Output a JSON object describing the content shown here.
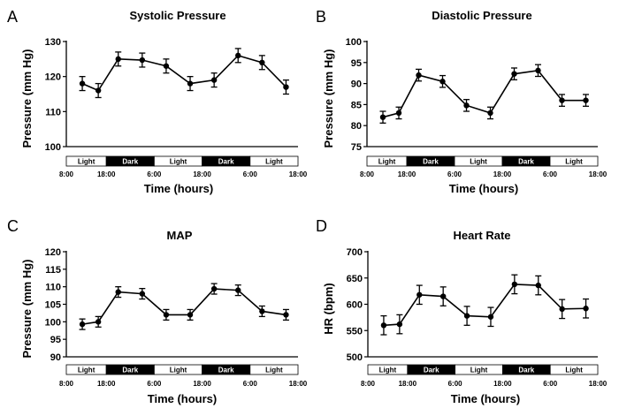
{
  "chart_data": [
    {
      "type": "line",
      "panel": "A",
      "title": "Systolic Pressure",
      "ylabel": "Pressure (mm Hg)",
      "xlabel": "Time (hours)",
      "ylim": [
        100,
        130
      ],
      "yticks": [
        100,
        110,
        120,
        130
      ],
      "x_tick_labels": [
        "8:00",
        "18:00",
        "6:00",
        "18:00",
        "6:00",
        "18:00"
      ],
      "x_tick_positions": [
        0,
        10,
        22,
        34,
        46,
        58
      ],
      "xlim": [
        0,
        58
      ],
      "light_dark_bands": [
        {
          "label": "Light",
          "start": 0,
          "end": 10,
          "color": "#ffffff"
        },
        {
          "label": "Dark",
          "start": 10,
          "end": 22,
          "color": "#000000"
        },
        {
          "label": "Light",
          "start": 22,
          "end": 34,
          "color": "#ffffff"
        },
        {
          "label": "Dark",
          "start": 34,
          "end": 46,
          "color": "#000000"
        },
        {
          "label": "Light",
          "start": 46,
          "end": 58,
          "color": "#ffffff"
        }
      ],
      "x": [
        4,
        8,
        13,
        19,
        25,
        31,
        37,
        43,
        49,
        55
      ],
      "values": [
        118,
        116,
        125,
        124.7,
        123,
        118,
        119,
        126,
        124,
        117
      ],
      "errors": [
        2,
        2,
        2,
        2,
        2,
        2,
        2,
        2,
        2,
        2
      ]
    },
    {
      "type": "line",
      "panel": "B",
      "title": "Diastolic Pressure",
      "ylabel": "Pressure (mm Hg)",
      "xlabel": "Time (hours)",
      "ylim": [
        75,
        100
      ],
      "yticks": [
        75,
        80,
        85,
        90,
        95,
        100
      ],
      "x_tick_labels": [
        "8:00",
        "18:00",
        "6:00",
        "18:00",
        "6:00",
        "18:00"
      ],
      "x_tick_positions": [
        0,
        10,
        22,
        34,
        46,
        58
      ],
      "xlim": [
        0,
        58
      ],
      "light_dark_bands": [
        {
          "label": "Light",
          "start": 0,
          "end": 10,
          "color": "#ffffff"
        },
        {
          "label": "Dark",
          "start": 10,
          "end": 22,
          "color": "#000000"
        },
        {
          "label": "Light",
          "start": 22,
          "end": 34,
          "color": "#ffffff"
        },
        {
          "label": "Dark",
          "start": 34,
          "end": 46,
          "color": "#000000"
        },
        {
          "label": "Light",
          "start": 46,
          "end": 58,
          "color": "#ffffff"
        }
      ],
      "x": [
        4,
        8,
        13,
        19,
        25,
        31,
        37,
        43,
        49,
        55
      ],
      "values": [
        82,
        83,
        92,
        90.5,
        84.8,
        83,
        92.3,
        93.1,
        86,
        86
      ],
      "errors": [
        1.4,
        1.4,
        1.4,
        1.4,
        1.4,
        1.4,
        1.4,
        1.4,
        1.4,
        1.4
      ]
    },
    {
      "type": "line",
      "panel": "C",
      "title": "MAP",
      "ylabel": "Pressure (mm Hg)",
      "xlabel": "Time (hours)",
      "ylim": [
        90,
        120
      ],
      "yticks": [
        90,
        95,
        100,
        105,
        110,
        115,
        120
      ],
      "x_tick_labels": [
        "8:00",
        "18:00",
        "6:00",
        "18:00",
        "6:00",
        "18:00"
      ],
      "x_tick_positions": [
        0,
        10,
        22,
        34,
        46,
        58
      ],
      "xlim": [
        0,
        58
      ],
      "light_dark_bands": [
        {
          "label": "Light",
          "start": 0,
          "end": 10,
          "color": "#ffffff"
        },
        {
          "label": "Dark",
          "start": 10,
          "end": 22,
          "color": "#000000"
        },
        {
          "label": "Light",
          "start": 22,
          "end": 34,
          "color": "#ffffff"
        },
        {
          "label": "Dark",
          "start": 34,
          "end": 46,
          "color": "#000000"
        },
        {
          "label": "Light",
          "start": 46,
          "end": 58,
          "color": "#ffffff"
        }
      ],
      "x": [
        4,
        8,
        13,
        19,
        25,
        31,
        37,
        43,
        49,
        55
      ],
      "values": [
        99.3,
        100,
        108.5,
        108,
        102,
        102,
        109.4,
        109,
        103,
        102
      ],
      "errors": [
        1.5,
        1.5,
        1.5,
        1.5,
        1.5,
        1.5,
        1.5,
        1.5,
        1.5,
        1.5
      ]
    },
    {
      "type": "line",
      "panel": "D",
      "title": "Heart Rate",
      "ylabel": "HR (bpm)",
      "xlabel": "Time (hours)",
      "ylim": [
        500,
        700
      ],
      "yticks": [
        500,
        550,
        600,
        650,
        700
      ],
      "x_tick_labels": [
        "8:00",
        "18:00",
        "6:00",
        "18:00",
        "6:00",
        "18:00"
      ],
      "x_tick_positions": [
        0,
        10,
        22,
        34,
        46,
        58
      ],
      "xlim": [
        0,
        58
      ],
      "light_dark_bands": [
        {
          "label": "Light",
          "start": 0,
          "end": 10,
          "color": "#ffffff"
        },
        {
          "label": "Dark",
          "start": 10,
          "end": 22,
          "color": "#000000"
        },
        {
          "label": "Light",
          "start": 22,
          "end": 34,
          "color": "#ffffff"
        },
        {
          "label": "Dark",
          "start": 34,
          "end": 46,
          "color": "#000000"
        },
        {
          "label": "Light",
          "start": 46,
          "end": 58,
          "color": "#ffffff"
        }
      ],
      "x": [
        4,
        8,
        13,
        19,
        25,
        31,
        37,
        43,
        49,
        55
      ],
      "values": [
        560,
        562,
        618,
        615,
        578,
        576,
        638,
        636,
        591,
        592
      ],
      "errors": [
        18,
        18,
        18,
        18,
        18,
        18,
        18,
        18,
        18,
        18
      ]
    }
  ]
}
